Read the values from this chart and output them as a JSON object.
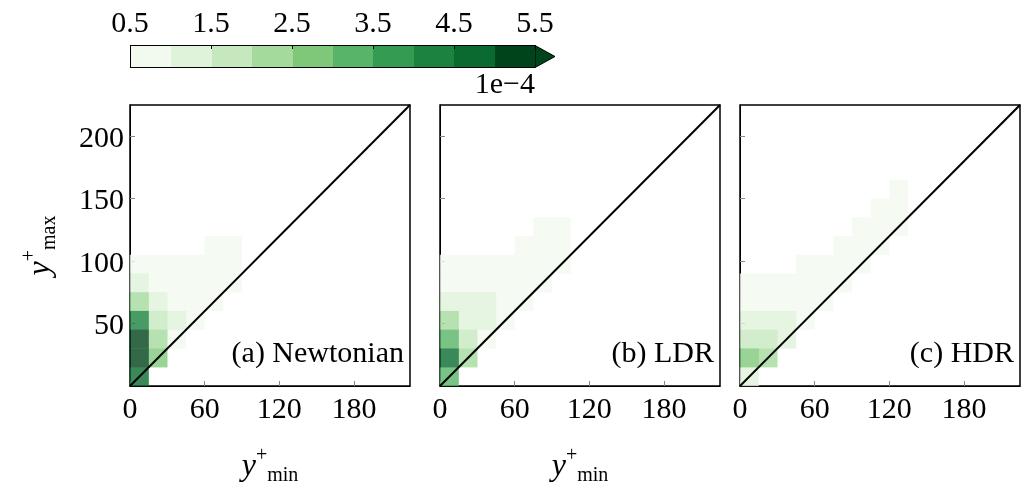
{
  "chart_data": [
    {
      "type": "scatter",
      "xlabel": "y$^{+}$$_{min}$",
      "ylabel": "y$^{+}$$_{max}$",
      "clabel": "1e−4",
      "annotations": [
        "(a) Newtonian"
      ],
      "marker": "square",
      "xlim": [
        0,
        225
      ],
      "xticks": [
        0,
        60,
        120,
        180
      ],
      "ylim": [
        0,
        225
      ],
      "yticks": [
        50,
        100,
        150,
        200
      ],
      "clim": [
        0.5,
        5.5
      ],
      "cticks": [
        0.5,
        1.5,
        2.5,
        3.5,
        4.5,
        5.5
      ],
      "series": [
        {
          "color": "#f2faf0",
          "x": [
            37.5,
            52.5,
            37.5,
            52.5,
            67.5,
            22.5,
            37.5,
            52.5,
            67.5,
            82.5,
            7.5,
            22.5,
            37.5,
            52.5,
            67.5,
            82.5,
            67.5,
            82.5
          ],
          "values": [
            37.5,
            52.5,
            67.5,
            67.5,
            67.5,
            82.5,
            82.5,
            82.5,
            82.5,
            82.5,
            97.5,
            97.5,
            97.5,
            97.5,
            97.5,
            97.5,
            112.5,
            112.5
          ]
        },
        {
          "color": "#dff2da",
          "x": [
            37.5,
            22.5,
            7.5
          ],
          "values": [
            52.5,
            67.5,
            82.5
          ]
        },
        {
          "color": "#c6e8bf",
          "x": [
            22.5
          ],
          "values": [
            52.5
          ]
        },
        {
          "color": "#a4da9c",
          "x": [
            22.5,
            7.5
          ],
          "values": [
            37.5,
            67.5
          ]
        },
        {
          "color": "#7fc87a",
          "x": [
            22.5
          ],
          "values": [
            22.5
          ]
        },
        {
          "color": "#1b8240",
          "x": [
            7.5
          ],
          "values": [
            52.5
          ]
        },
        {
          "color": "#0a6a2f",
          "x": [
            7.5
          ],
          "values": [
            7.5
          ]
        },
        {
          "color": "#00441b",
          "x": [
            7.5,
            7.5
          ],
          "values": [
            22.5,
            37.5
          ]
        },
        {
          "type": "line",
          "marker": "none",
          "x": [
            0,
            225
          ],
          "values": [
            0,
            225
          ],
          "color": "#000000"
        }
      ]
    },
    {
      "type": "scatter",
      "xlabel": "y$^{+}$$_{min}$",
      "annotations": [
        "(b) LDR"
      ],
      "tick_labels": "x",
      "marker": "square",
      "xlim": [
        0,
        225
      ],
      "xticks": [
        0,
        60,
        120,
        180
      ],
      "ylim": [
        0,
        225
      ],
      "yticks": [
        50,
        100,
        150,
        200
      ],
      "series": [
        {
          "color": "#f2faf0",
          "x": [
            37.5,
            52.5,
            52.5,
            67.5,
            7.5,
            22.5,
            37.5,
            52.5,
            67.5,
            82.5,
            7.5,
            22.5,
            37.5,
            52.5,
            67.5,
            82.5,
            97.5,
            67.5,
            82.5,
            97.5,
            82.5,
            97.5
          ],
          "values": [
            37.5,
            52.5,
            67.5,
            67.5,
            82.5,
            82.5,
            82.5,
            82.5,
            82.5,
            82.5,
            97.5,
            97.5,
            97.5,
            97.5,
            97.5,
            97.5,
            97.5,
            112.5,
            112.5,
            112.5,
            127.5,
            127.5
          ]
        },
        {
          "color": "#dff2da",
          "x": [
            22.5,
            37.5,
            7.5,
            22.5,
            37.5
          ],
          "values": [
            52.5,
            52.5,
            67.5,
            67.5,
            67.5
          ]
        },
        {
          "color": "#c6e8bf",
          "x": [
            22.5
          ],
          "values": [
            37.5
          ]
        },
        {
          "color": "#a4da9c",
          "x": [
            22.5,
            7.5
          ],
          "values": [
            22.5,
            52.5
          ]
        },
        {
          "color": "#58b466",
          "x": [
            7.5,
            7.5
          ],
          "values": [
            7.5,
            37.5
          ]
        },
        {
          "color": "#0a6a2f",
          "x": [
            7.5
          ],
          "values": [
            22.5
          ]
        },
        {
          "type": "line",
          "marker": "none",
          "x": [
            0,
            225
          ],
          "values": [
            0,
            225
          ],
          "color": "#000000"
        }
      ]
    },
    {
      "type": "scatter",
      "annotations": [
        "(c) HDR"
      ],
      "tick_labels": "x",
      "marker": "square",
      "xlim": [
        0,
        225
      ],
      "xticks": [
        0,
        60,
        120,
        180
      ],
      "ylim": [
        0,
        225
      ],
      "yticks": [
        50,
        100,
        150,
        200
      ],
      "series": [
        {
          "color": "#f2faf0",
          "x": [
            52.5,
            7.5,
            22.5,
            37.5,
            52.5,
            67.5,
            7.5,
            22.5,
            37.5,
            52.5,
            67.5,
            82.5,
            52.5,
            67.5,
            82.5,
            97.5,
            82.5,
            97.5,
            112.5,
            97.5,
            112.5,
            127.5,
            112.5,
            127.5,
            127.5
          ],
          "values": [
            52.5,
            67.5,
            67.5,
            67.5,
            67.5,
            67.5,
            82.5,
            82.5,
            82.5,
            82.5,
            82.5,
            82.5,
            97.5,
            97.5,
            97.5,
            97.5,
            112.5,
            112.5,
            112.5,
            127.5,
            127.5,
            127.5,
            142.5,
            142.5,
            157.5
          ]
        },
        {
          "color": "#dff2da",
          "x": [
            7.5,
            37.5,
            7.5,
            22.5,
            37.5
          ],
          "values": [
            7.5,
            37.5,
            52.5,
            52.5,
            52.5
          ]
        },
        {
          "color": "#c6e8bf",
          "x": [
            7.5,
            22.5
          ],
          "values": [
            37.5,
            37.5
          ]
        },
        {
          "color": "#a4da9c",
          "x": [
            22.5
          ],
          "values": [
            22.5
          ]
        },
        {
          "color": "#7fc87a",
          "x": [
            7.5
          ],
          "values": [
            22.5
          ]
        },
        {
          "type": "line",
          "marker": "none",
          "x": [
            0,
            225
          ],
          "values": [
            0,
            225
          ],
          "color": "#000000"
        }
      ]
    }
  ]
}
